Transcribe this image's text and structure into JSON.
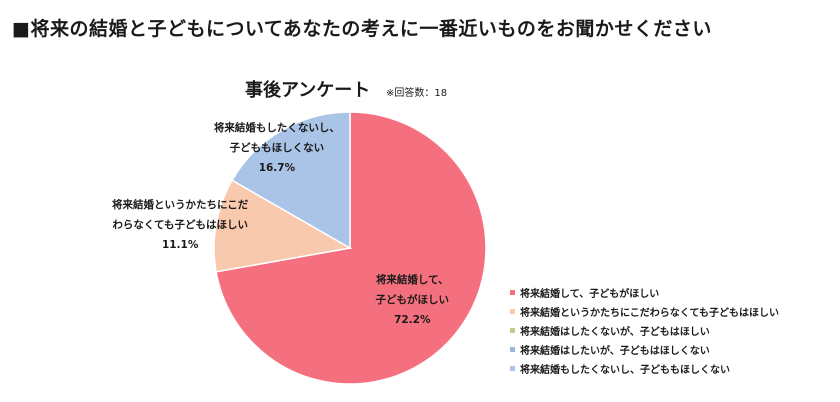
{
  "page": {
    "title": "■将来の結婚と子どもについてあなたの考えに一番近いものをお聞かせください"
  },
  "chart_data": {
    "type": "pie",
    "title": "事後アンケート",
    "note": "※回答数：18",
    "categories": [
      "将来結婚して、子どもがほしい",
      "将来結婚というかたちにこだわらなくても子どもはほしい",
      "将来結婚はしたくないが、子どもはほしい",
      "将来結婚はしたいが、子どもはほしくない",
      "将来結婚もしたくないし、子どももほしくない"
    ],
    "values": [
      72.2,
      11.1,
      0,
      0,
      16.7
    ],
    "colors": [
      "#f4707e",
      "#f9c9ad",
      "#c9c98c",
      "#9fb7d9",
      "#a9c4e6"
    ],
    "slice_labels": [
      {
        "lines": [
          "将来結婚して、",
          "子どもがほしい",
          "72.2%"
        ]
      },
      {
        "lines": [
          "将来結婚というかたちにこだ",
          "わらなくても子どもはほしい",
          "11.1%"
        ]
      },
      null,
      null,
      {
        "lines": [
          "将来結婚もしたくないし、",
          "子どももほしくない",
          "16.7%"
        ]
      }
    ],
    "legend_position": "right-bottom"
  }
}
